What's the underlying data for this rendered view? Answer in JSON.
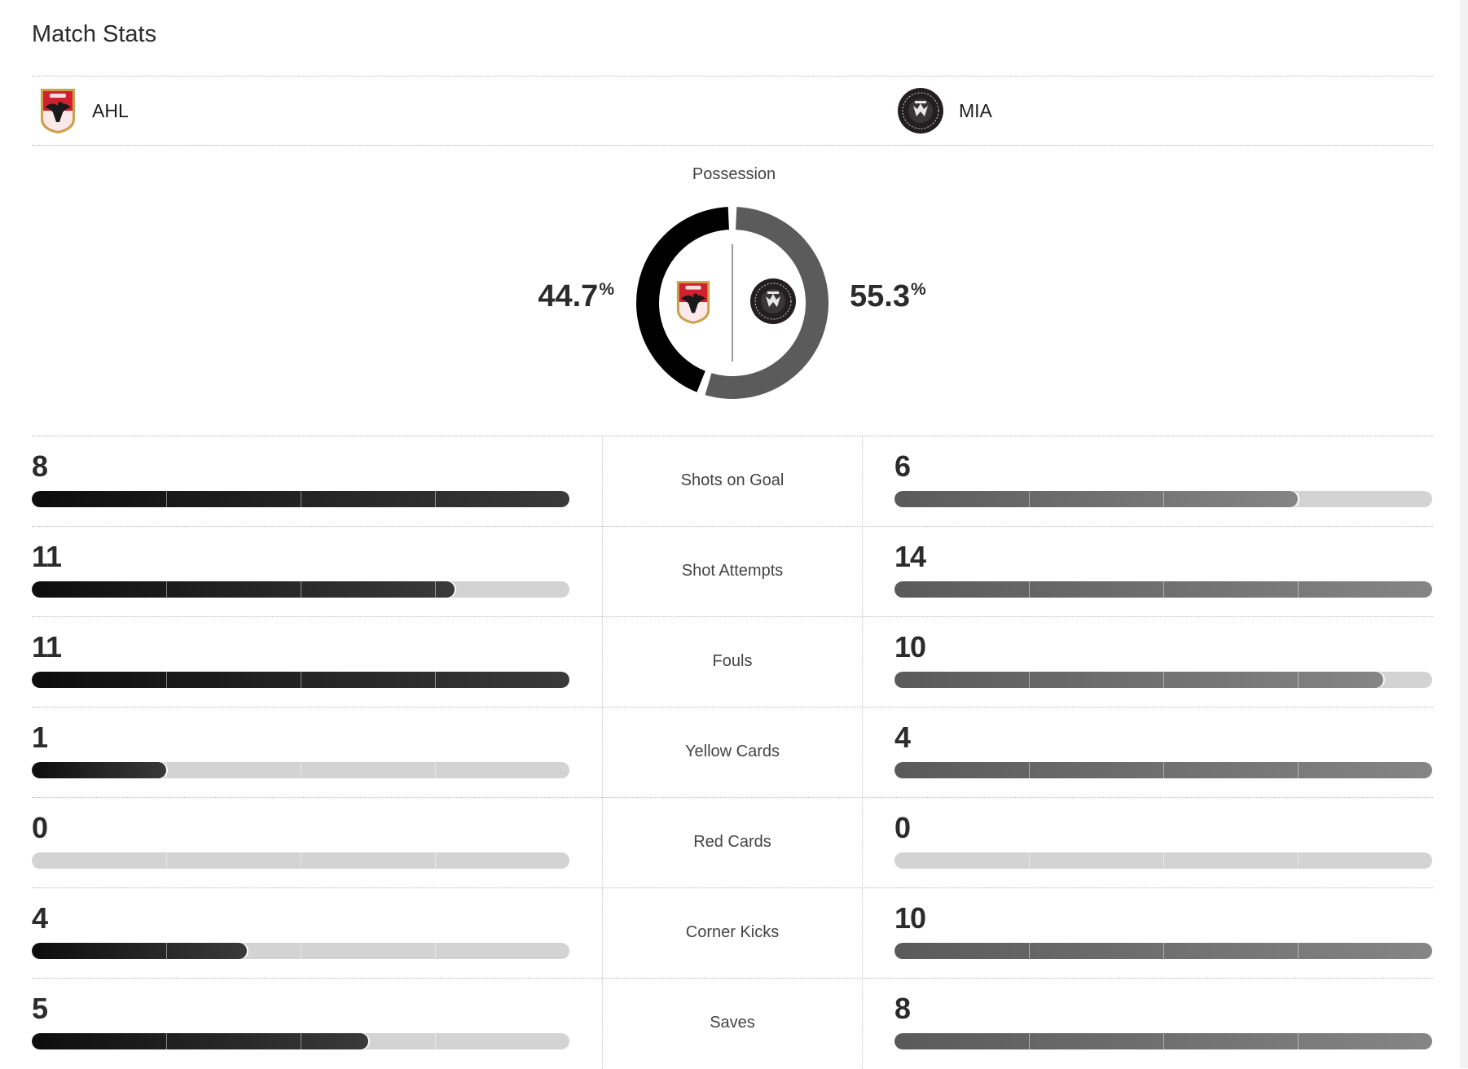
{
  "title": "Match Stats",
  "teams": {
    "home": {
      "abbr": "AHL",
      "color": "#d3202f"
    },
    "away": {
      "abbr": "MIA",
      "color": "#231f20"
    }
  },
  "possession": {
    "label": "Possession",
    "home_value": "44.7",
    "away_value": "55.3",
    "unit": "%",
    "home_color": "#000000",
    "away_color": "#5b5b5b"
  },
  "stats": [
    {
      "label": "Shots on Goal",
      "home": "8",
      "away": "6"
    },
    {
      "label": "Shot Attempts",
      "home": "11",
      "away": "14"
    },
    {
      "label": "Fouls",
      "home": "11",
      "away": "10"
    },
    {
      "label": "Yellow Cards",
      "home": "1",
      "away": "4"
    },
    {
      "label": "Red Cards",
      "home": "0",
      "away": "0"
    },
    {
      "label": "Corner Kicks",
      "home": "4",
      "away": "10"
    },
    {
      "label": "Saves",
      "home": "5",
      "away": "8"
    }
  ]
}
